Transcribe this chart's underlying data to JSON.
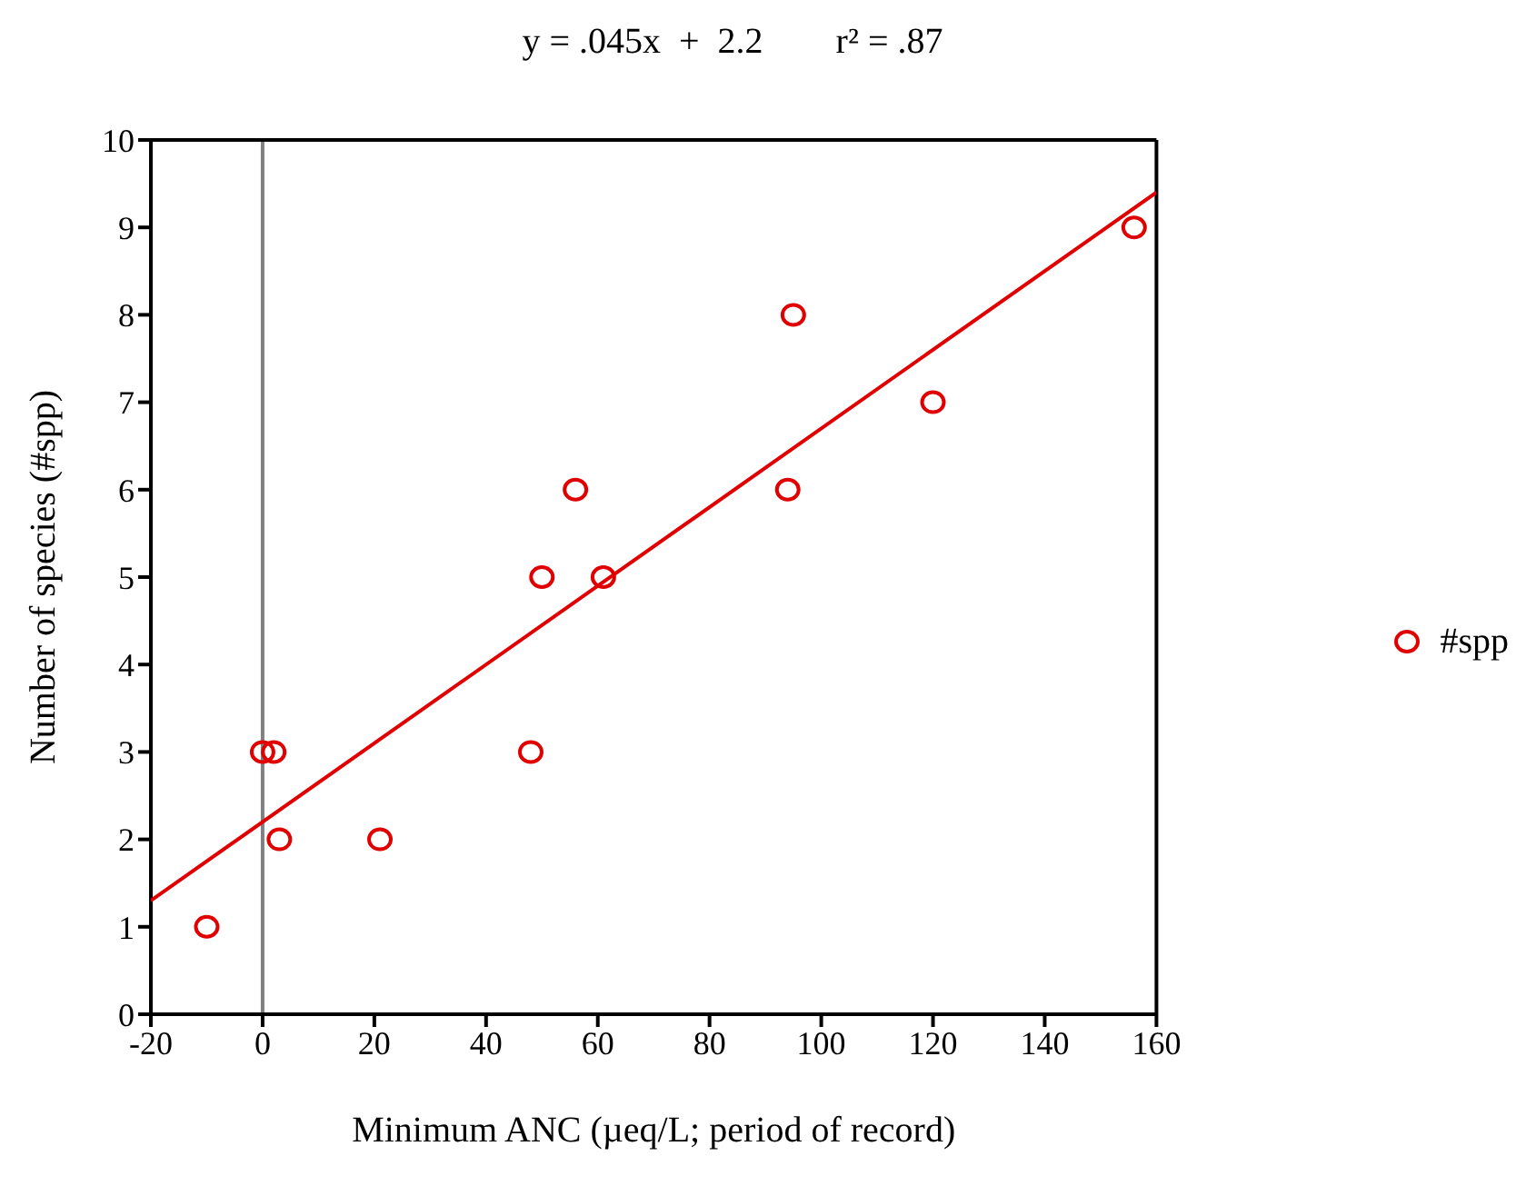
{
  "chart_data": {
    "type": "scatter",
    "title": "y = .045x  +  2.2        r² = .87",
    "xlabel": "Minimum ANC (µeq/L; period of record)",
    "ylabel": "Number of species  (#spp)",
    "series": [
      {
        "name": "#spp",
        "marker": "circle",
        "color": "#e00000",
        "x": [
          -10,
          0,
          2,
          3,
          21,
          48,
          50,
          56,
          61,
          94,
          95,
          120,
          156
        ],
        "values": [
          1,
          3,
          3,
          2,
          2,
          3,
          5,
          6,
          5,
          6,
          8,
          7,
          9
        ]
      },
      {
        "type": "line",
        "marker": "none",
        "color": "#e00000",
        "x": [
          -20,
          160
        ],
        "values": [
          1.3,
          9.4
        ]
      }
    ],
    "xlim": [
      -20,
      160
    ],
    "xticks": [
      -20,
      0,
      20,
      40,
      60,
      80,
      100,
      120,
      140,
      160
    ],
    "ylim": [
      0,
      10
    ],
    "yticks": [
      0,
      1,
      2,
      3,
      4,
      5,
      6,
      7,
      8,
      9,
      10
    ],
    "ref_lines": [
      {
        "axis": "x",
        "value": 0,
        "color": "#808080"
      }
    ],
    "line_style": "solid",
    "legend": "right",
    "grid": false
  }
}
